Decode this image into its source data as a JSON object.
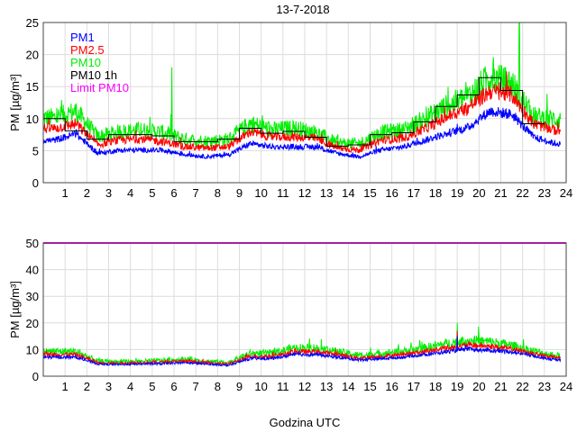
{
  "chart_data": [
    {
      "type": "line",
      "title": "13-7-2018",
      "xlabel": "",
      "ylabel": "PM [µg/m³]",
      "xlim": [
        0,
        24
      ],
      "ylim": [
        0,
        25
      ],
      "xticks": [
        1,
        2,
        3,
        4,
        5,
        6,
        7,
        8,
        9,
        10,
        11,
        12,
        13,
        14,
        15,
        16,
        17,
        18,
        19,
        20,
        21,
        22,
        23,
        24
      ],
      "yticks": [
        0,
        5,
        10,
        15,
        20,
        25
      ],
      "grid": true,
      "legend": [
        "PM1",
        "PM2.5",
        "PM10",
        "PM10 1h",
        "Limit PM10"
      ],
      "legend_position": "top-left",
      "colors": {
        "PM1": "#0000ff",
        "PM2.5": "#ff0000",
        "PM10": "#00ee00",
        "PM10 1h": "#000000",
        "Limit PM10": "#ff00ff"
      },
      "hourly_means": {
        "PM1": [
          6.5,
          7.5,
          4.5,
          5,
          5,
          5,
          4.3,
          4,
          4.3,
          6,
          5.5,
          5.5,
          5.5,
          4.5,
          4,
          5,
          5.5,
          6.5,
          7.5,
          8.5,
          11,
          10.5,
          7,
          6
        ],
        "PM2.5": [
          8.3,
          9,
          5.8,
          6.5,
          6.7,
          6.3,
          5.5,
          5.3,
          5.5,
          7.8,
          7,
          7,
          6.8,
          5.3,
          5,
          6.5,
          6.8,
          8.2,
          10,
          11.5,
          14,
          13.5,
          9,
          8
        ],
        "PM10": [
          9.8,
          10.8,
          7,
          7.7,
          8,
          7.6,
          6.6,
          6.3,
          6.6,
          9,
          8,
          8.3,
          7.6,
          6,
          5.9,
          7.6,
          8,
          9.6,
          11.6,
          13,
          16,
          15,
          10,
          9.6
        ]
      },
      "PM10_1h": [
        10,
        8.1,
        6.8,
        7.5,
        7.5,
        7.3,
        6.4,
        6.4,
        6.8,
        8.5,
        7.7,
        8,
        7.1,
        5.7,
        5.9,
        7.5,
        7.8,
        9.5,
        11.9,
        13.7,
        16.4,
        14.4,
        9.2
      ],
      "spikes": [
        {
          "series": "PM10",
          "x": 5.9,
          "y": 18
        },
        {
          "series": "PM10",
          "x": 21.85,
          "y": 26
        }
      ],
      "end_hour": 23.75
    },
    {
      "type": "line",
      "title": "",
      "xlabel": "Godzina UTC",
      "ylabel": "PM [µg/m³]",
      "xlim": [
        0,
        24
      ],
      "ylim": [
        0,
        50
      ],
      "xticks": [
        1,
        2,
        3,
        4,
        5,
        6,
        7,
        8,
        9,
        10,
        11,
        12,
        13,
        14,
        15,
        16,
        17,
        18,
        19,
        20,
        21,
        22,
        23,
        24
      ],
      "yticks": [
        0,
        10,
        20,
        30,
        40,
        50
      ],
      "grid": true,
      "limit_PM10": 50,
      "hourly_means": {
        "PM1": [
          7,
          7,
          4.5,
          4.3,
          4.5,
          4.6,
          5,
          4.5,
          4,
          6.5,
          6.5,
          8,
          8,
          7,
          6,
          6.5,
          7,
          8,
          9,
          10,
          9.5,
          9,
          7.5,
          6
        ],
        "PM2.5": [
          8,
          8,
          5,
          4.8,
          5,
          5.2,
          5.6,
          5,
          4.5,
          7.3,
          7.3,
          9,
          9,
          8,
          6.7,
          7.3,
          8,
          9,
          10.3,
          11.5,
          11,
          10,
          8.3,
          6.8
        ],
        "PM10": [
          9,
          9,
          5.5,
          5.2,
          5.4,
          5.7,
          6.2,
          5.5,
          5,
          8.3,
          8.3,
          10.3,
          10.3,
          9,
          7.5,
          8.3,
          9,
          10.3,
          11.8,
          13,
          12.5,
          11.2,
          9.2,
          7.5
        ]
      },
      "spikes": [
        {
          "series": "PM10",
          "x": 19.0,
          "y": 20
        },
        {
          "series": "PM2.5",
          "x": 19.0,
          "y": 17
        },
        {
          "series": "PM1",
          "x": 19.0,
          "y": 15
        }
      ],
      "end_hour": 23.75
    }
  ]
}
